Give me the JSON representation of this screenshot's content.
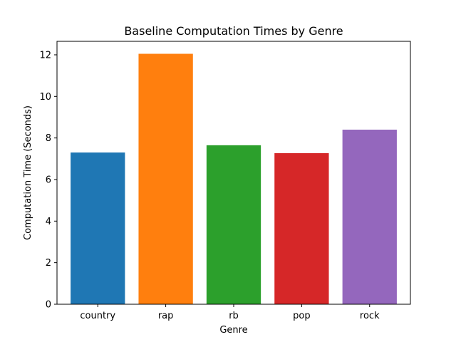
{
  "chart_data": {
    "type": "bar",
    "title": "Baseline Computation Times by Genre",
    "xlabel": "Genre",
    "ylabel": "Computation Time (Seconds)",
    "categories": [
      "country",
      "rap",
      "rb",
      "pop",
      "rock"
    ],
    "values": [
      7.3,
      12.05,
      7.65,
      7.27,
      8.4
    ],
    "colors": [
      "#1f77b4",
      "#ff7f0e",
      "#2ca02c",
      "#d62728",
      "#9467bd"
    ],
    "yticks": [
      0,
      2,
      4,
      6,
      8,
      10,
      12
    ],
    "ylim": [
      0,
      12.65
    ],
    "grid": false,
    "legend": "none"
  }
}
